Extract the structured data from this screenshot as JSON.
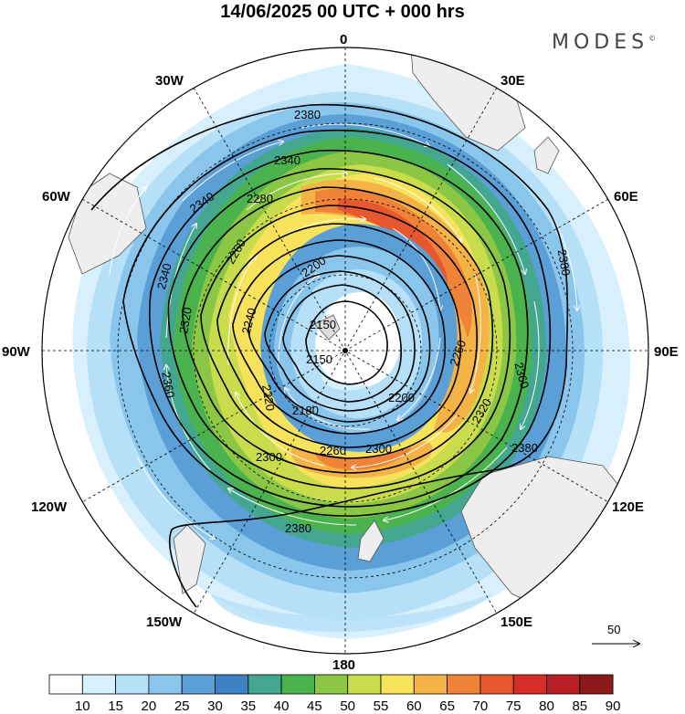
{
  "header": {
    "title": "14/06/2025  00 UTC  + 000 hrs",
    "brand": "MODES",
    "brand_mark": "©"
  },
  "map": {
    "projection": "south-polar-stereographic",
    "longitude_labels": {
      "top": "0",
      "bottom": "180",
      "left": "90W",
      "right": "90E",
      "upper_left": "30W",
      "upper_right": "30E",
      "mid_left": "60W",
      "mid_right": "60E",
      "lower_left": "120W",
      "lower_right": "120E",
      "bottom_left": "150W",
      "bottom_right": "150E"
    },
    "contour_labels": [
      "2380",
      "2380",
      "2380",
      "2380",
      "2360",
      "2360",
      "2340",
      "2340",
      "2340",
      "2320",
      "2320",
      "2300",
      "2300",
      "2280",
      "2260",
      "2260",
      "2260",
      "2240",
      "2220",
      "2200",
      "2200",
      "2180",
      "2150",
      "2150"
    ],
    "reference_vector_label": "50",
    "colors": {
      "land": "#eeeeee",
      "coast": "#555555"
    }
  },
  "colorbar": {
    "labels": [
      "10",
      "15",
      "20",
      "25",
      "30",
      "35",
      "40",
      "45",
      "50",
      "55",
      "60",
      "65",
      "70",
      "75",
      "80",
      "85",
      "90"
    ],
    "colors": [
      "#ffffff",
      "#d7f0fc",
      "#b5e0f8",
      "#8ac5ec",
      "#5a9fd6",
      "#3e82c5",
      "#43a790",
      "#4ab34d",
      "#8bc644",
      "#c9dc4c",
      "#f7e25c",
      "#f5b346",
      "#ef8337",
      "#e8582e",
      "#d72d27",
      "#b81f26",
      "#8c1a1a"
    ]
  }
}
